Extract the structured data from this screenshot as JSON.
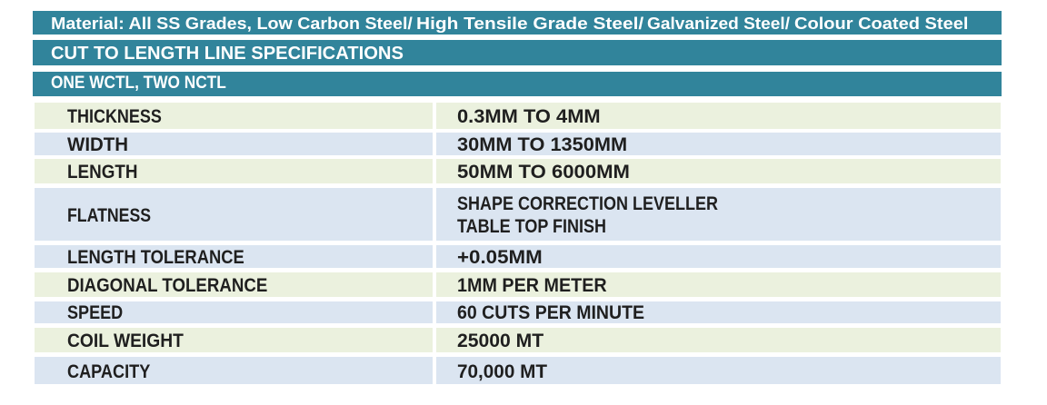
{
  "colors": {
    "header_bar": "#31849B",
    "header_text": "#FFFFFF",
    "row_green": "#EBF1DE",
    "row_blue": "#DBE5F1",
    "body_text": "#1F1F1F",
    "page_background": "#FFFFFF"
  },
  "header": {
    "material_line": "Material: All SS Grades, Low Carbon Steel/ High Tensile Grade Steel/ Galvanized Steel/ Colour Coated Steel",
    "title": "CUT TO LENGTH LINE SPECIFICATIONS",
    "subtitle": "ONE WCTL, TWO NCTL"
  },
  "spec_table": {
    "rows": [
      {
        "label": "THICKNESS",
        "value": "0.3MM TO 4MM",
        "tone": "green"
      },
      {
        "label": "WIDTH",
        "value": "30MM TO 1350MM",
        "tone": "blue"
      },
      {
        "label": "LENGTH",
        "value": "50MM TO 6000MM",
        "tone": "green"
      },
      {
        "label": "FLATNESS",
        "value": "SHAPE CORRECTION LEVELLER\nTABLE TOP FINISH",
        "tone": "blue"
      },
      {
        "label": "LENGTH TOLERANCE",
        "value": "+0.05MM",
        "tone": "blue"
      },
      {
        "label": "DIAGONAL TOLERANCE",
        "value": "1MM PER METER",
        "tone": "green"
      },
      {
        "label": "SPEED",
        "value": "60 CUTS PER MINUTE",
        "tone": "blue"
      },
      {
        "label": "COIL WEIGHT",
        "value": "25000 MT",
        "tone": "green"
      },
      {
        "label": "CAPACITY",
        "value": "70,000 MT",
        "tone": "blue"
      }
    ]
  }
}
